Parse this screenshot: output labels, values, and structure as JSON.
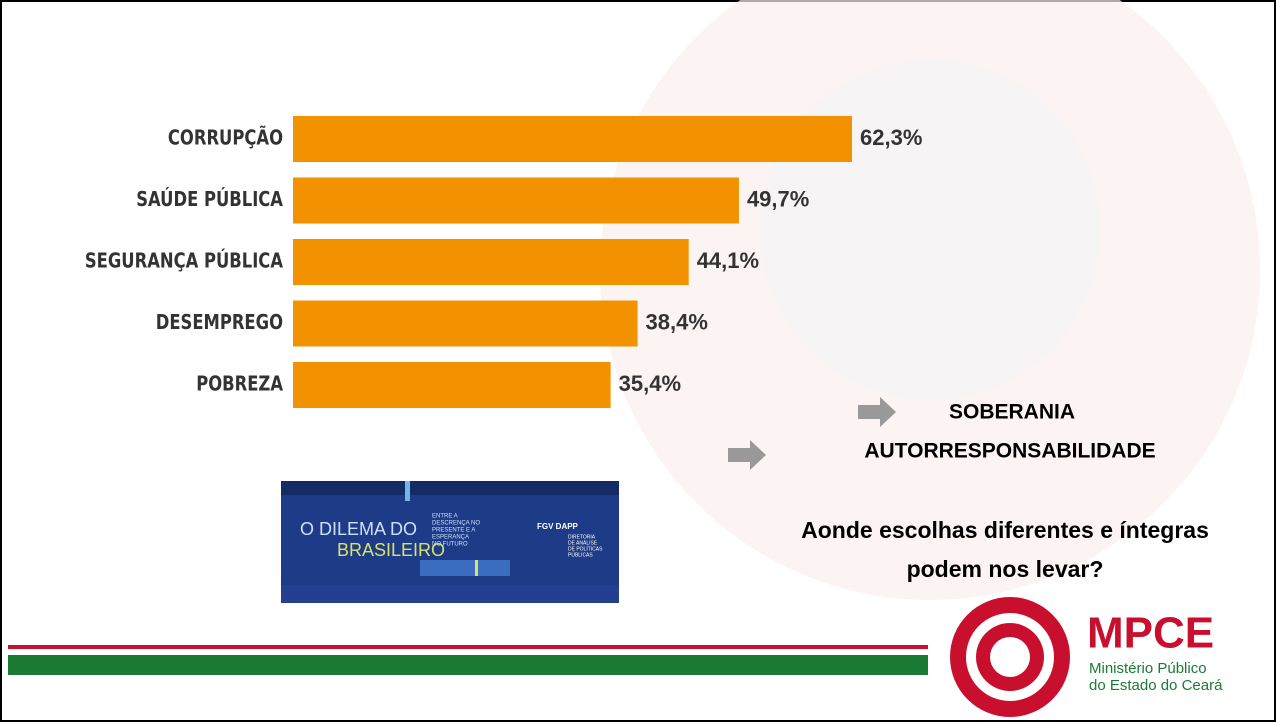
{
  "chart_data": {
    "type": "bar",
    "orientation": "horizontal",
    "categories": [
      "CORRUPÇÃO",
      "SAÚDE PÚBLICA",
      "SEGURANÇA PÚBLICA",
      "DESEMPREGO",
      "POBREZA"
    ],
    "values": [
      62.3,
      49.7,
      44.1,
      38.4,
      35.4
    ],
    "value_labels": [
      "62,3%",
      "49,7%",
      "44,1%",
      "38,4%",
      "35,4%"
    ],
    "color": "#f39200"
  },
  "points": [
    "SOBERANIA",
    "AUTORRESPONSABILIDADE"
  ],
  "question": [
    "Aonde escolhas diferentes e íntegras",
    "podem nos levar?"
  ],
  "banner": {
    "title_1": "O DILEMA DO",
    "title_2": "BRASILEIRO",
    "subtitle": [
      "ENTRE A",
      "DESCRENÇA NO",
      "PRESENTE E A",
      "ESPERANÇA",
      "NO FUTURO"
    ],
    "brand": "FGV DAPP",
    "brand_sub": [
      "DIRETORIA",
      "DE ANÁLISE",
      "DE POLÍTICAS",
      "PÚBLICAS"
    ]
  },
  "logo": {
    "name": "MPCE",
    "line_1": "Ministério Público",
    "line_2": "do Estado do Ceará"
  }
}
